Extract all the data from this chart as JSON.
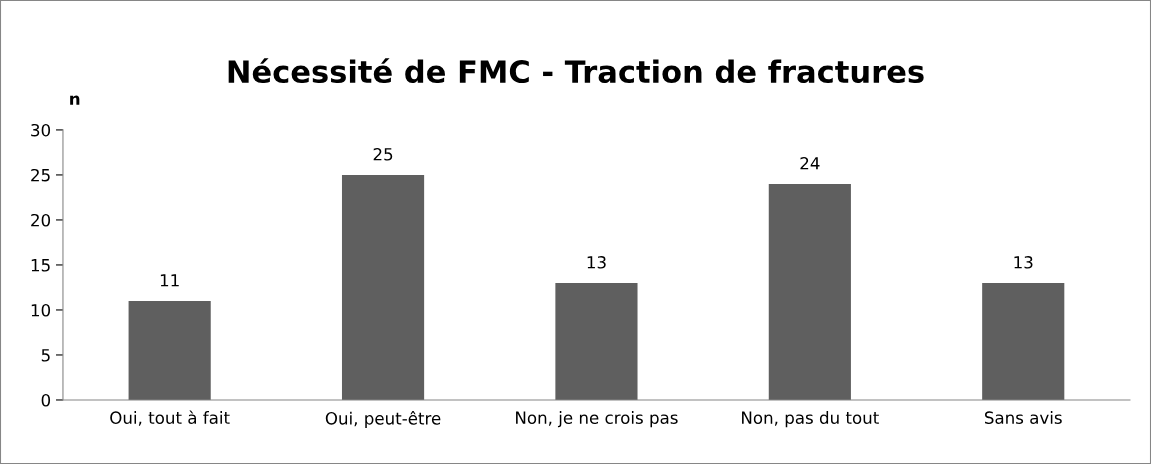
{
  "chart_data": {
    "type": "bar",
    "title": "Nécessité de FMC - Traction de fractures",
    "ylabel": "n",
    "categories": [
      "Oui, tout à fait",
      "Oui, peut-être",
      "Non, je ne crois pas",
      "Non, pas du tout",
      "Sans avis"
    ],
    "values": [
      11,
      25,
      13,
      24,
      13
    ],
    "color": "#5f5f5f",
    "ylim": [
      0,
      30
    ],
    "yticks": [
      0,
      5,
      10,
      15,
      20,
      25,
      30
    ],
    "grid": false,
    "data_labels": true,
    "legend": false
  }
}
